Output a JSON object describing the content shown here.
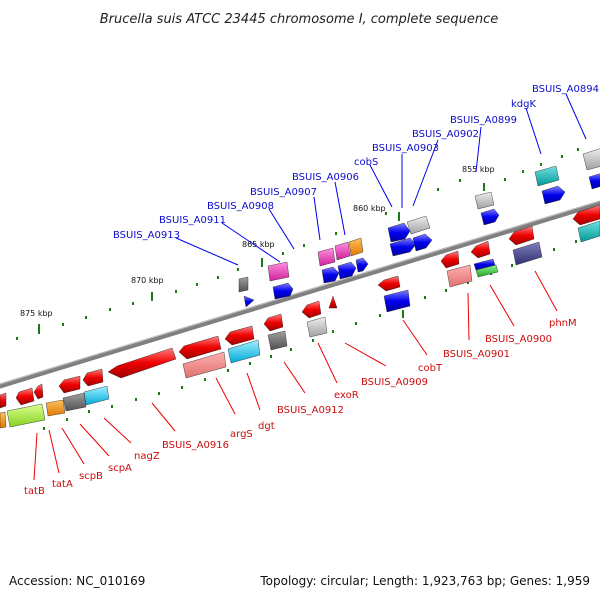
{
  "title": "Brucella suis ATCC 23445 chromosome I, complete sequence",
  "footer": {
    "accession": "Accession: NC_010169",
    "stats": "Topology: circular; Length: 1,923,763 bp; Genes: 1,959"
  },
  "scale_labels": [
    "875 kbp",
    "870 kbp",
    "865 kbp",
    "860 kbp",
    "855 kbp"
  ],
  "genes_top": [
    "BSUIS_A0913",
    "BSUIS_A0911",
    "BSUIS_A0908",
    "BSUIS_A0907",
    "BSUIS_A0906",
    "cobS",
    "BSUIS_A0903",
    "BSUIS_A0902",
    "BSUIS_A0899",
    "kdgK",
    "BSUIS_A0894"
  ],
  "genes_bottom": [
    "tatB",
    "tatA",
    "scpB",
    "scpA",
    "nagZ",
    "BSUIS_A0916",
    "argS",
    "dgt",
    "BSUIS_A0912",
    "exoR",
    "BSUIS_A0909",
    "cobT",
    "BSUIS_A0901",
    "BSUIS_A0900",
    "phnM"
  ],
  "colors": {
    "forward_strand": "#0000ee",
    "reverse_strand": "#ee0000",
    "backbone": "#808080",
    "top_label": "#0d0dcc",
    "bottom_label": "#cc0d0d",
    "tick": "#1a7a1a"
  }
}
